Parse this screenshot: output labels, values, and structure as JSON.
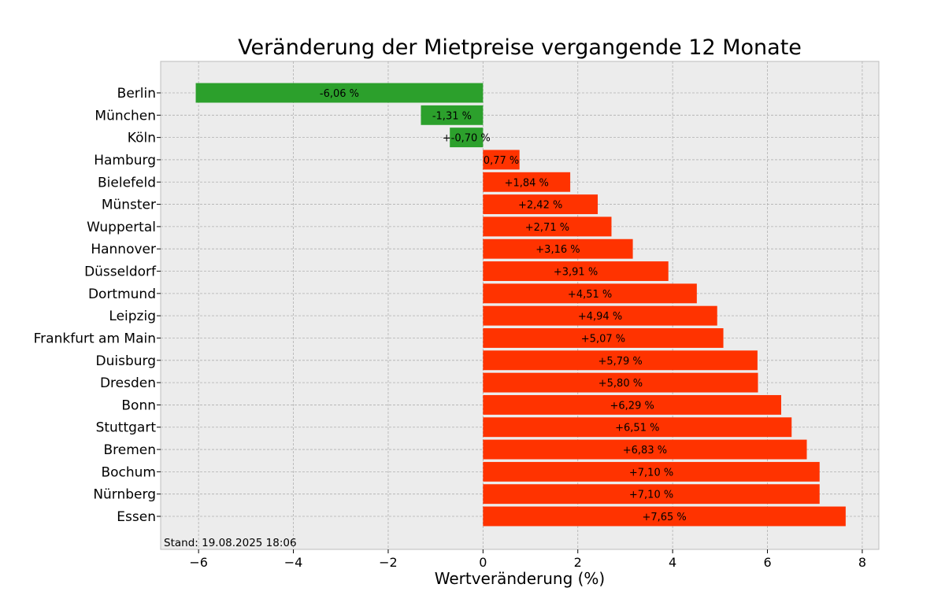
{
  "chart_data": {
    "type": "bar",
    "orientation": "horizontal",
    "title": "Veränderung der Mietpreise vergangende 12 Monate",
    "xlabel": "Wertveränderung (%)",
    "ylabel": "",
    "xlim": [
      -6.8,
      8.35
    ],
    "xticks": [
      -6,
      -4,
      -2,
      0,
      2,
      4,
      6,
      8
    ],
    "xtick_labels": [
      "−6",
      "−4",
      "−2",
      "0",
      "2",
      "4",
      "6",
      "8"
    ],
    "grid": true,
    "note": "Stand: 19.08.2025 18:06",
    "colors": {
      "negative": "#2ca02c",
      "positive": "#ff3300",
      "background": "#ececec"
    },
    "categories": [
      "Berlin",
      "München",
      "Köln",
      "Hamburg",
      "Bielefeld",
      "Münster",
      "Wuppertal",
      "Hannover",
      "Düsseldorf",
      "Dortmund",
      "Leipzig",
      "Frankfurt am Main",
      "Duisburg",
      "Dresden",
      "Bonn",
      "Stuttgart",
      "Bremen",
      "Bochum",
      "Nürnberg",
      "Essen"
    ],
    "values": [
      -6.06,
      -1.31,
      -0.7,
      0.77,
      1.84,
      2.42,
      2.71,
      3.16,
      3.91,
      4.51,
      4.94,
      5.07,
      5.79,
      5.8,
      6.29,
      6.51,
      6.83,
      7.1,
      7.1,
      7.65
    ],
    "data_labels": [
      "-6,06 %",
      "-1,31 %",
      "+-0,70 %",
      "0,77 %",
      "+1,84 %",
      "+2,42 %",
      "+2,71 %",
      "+3,16 %",
      "+3,91 %",
      "+4,51 %",
      "+4,94 %",
      "+5,07 %",
      "+5,79 %",
      "+5,80 %",
      "+6,29 %",
      "+6,51 %",
      "+6,83 %",
      "+7,10 %",
      "+7,10 %",
      "+7,65 %"
    ]
  }
}
